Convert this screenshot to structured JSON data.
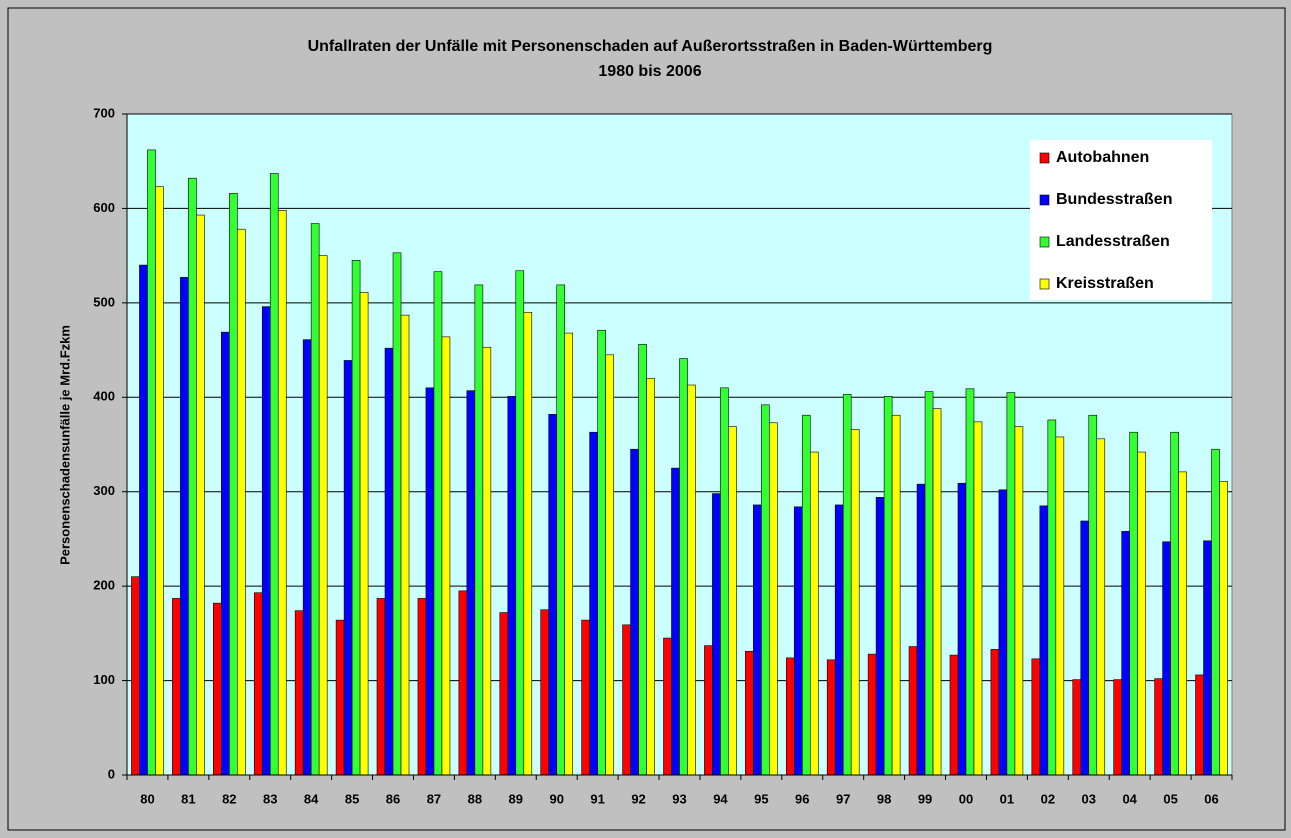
{
  "chart_data": {
    "type": "bar",
    "title": "Unfallraten der Unfälle mit Personenschaden auf Außerortsstraßen in Baden-Württemberg",
    "subtitle": "1980 bis 2006",
    "y_label": "Personenschadensunfälle je Mrd.Fzkm",
    "categories": [
      "80",
      "81",
      "82",
      "83",
      "84",
      "85",
      "86",
      "87",
      "88",
      "89",
      "90",
      "91",
      "92",
      "93",
      "94",
      "95",
      "96",
      "97",
      "98",
      "99",
      "00",
      "01",
      "02",
      "03",
      "04",
      "05",
      "06"
    ],
    "series": [
      {
        "name": "Autobahnen",
        "color": "#ff0000",
        "values": [
          210,
          187,
          182,
          193,
          174,
          164,
          187,
          187,
          195,
          172,
          175,
          164,
          159,
          145,
          137,
          131,
          124,
          122,
          128,
          136,
          127,
          133,
          123,
          101,
          101,
          102,
          106
        ]
      },
      {
        "name": "Bundesstraßen",
        "color": "#0000ff",
        "values": [
          540,
          527,
          469,
          496,
          461,
          439,
          452,
          410,
          407,
          401,
          382,
          363,
          345,
          325,
          298,
          286,
          284,
          286,
          294,
          308,
          309,
          302,
          285,
          269,
          258,
          247,
          248
        ]
      },
      {
        "name": "Landesstraßen",
        "color": "#33ff33",
        "values": [
          662,
          632,
          616,
          637,
          584,
          545,
          553,
          533,
          519,
          534,
          519,
          471,
          456,
          441,
          410,
          392,
          381,
          403,
          401,
          406,
          409,
          405,
          376,
          381,
          363,
          363,
          345
        ]
      },
      {
        "name": "Kreisstraßen",
        "color": "#ffff00",
        "values": [
          623,
          593,
          578,
          598,
          550,
          511,
          487,
          464,
          453,
          490,
          468,
          445,
          420,
          413,
          369,
          373,
          342,
          366,
          381,
          388,
          374,
          369,
          358,
          356,
          342,
          321,
          311
        ]
      }
    ],
    "ylim": [
      0,
      700
    ],
    "yticks": [
      0,
      100,
      200,
      300,
      400,
      500,
      600,
      700
    ],
    "grid": true,
    "legend": "upper right"
  }
}
